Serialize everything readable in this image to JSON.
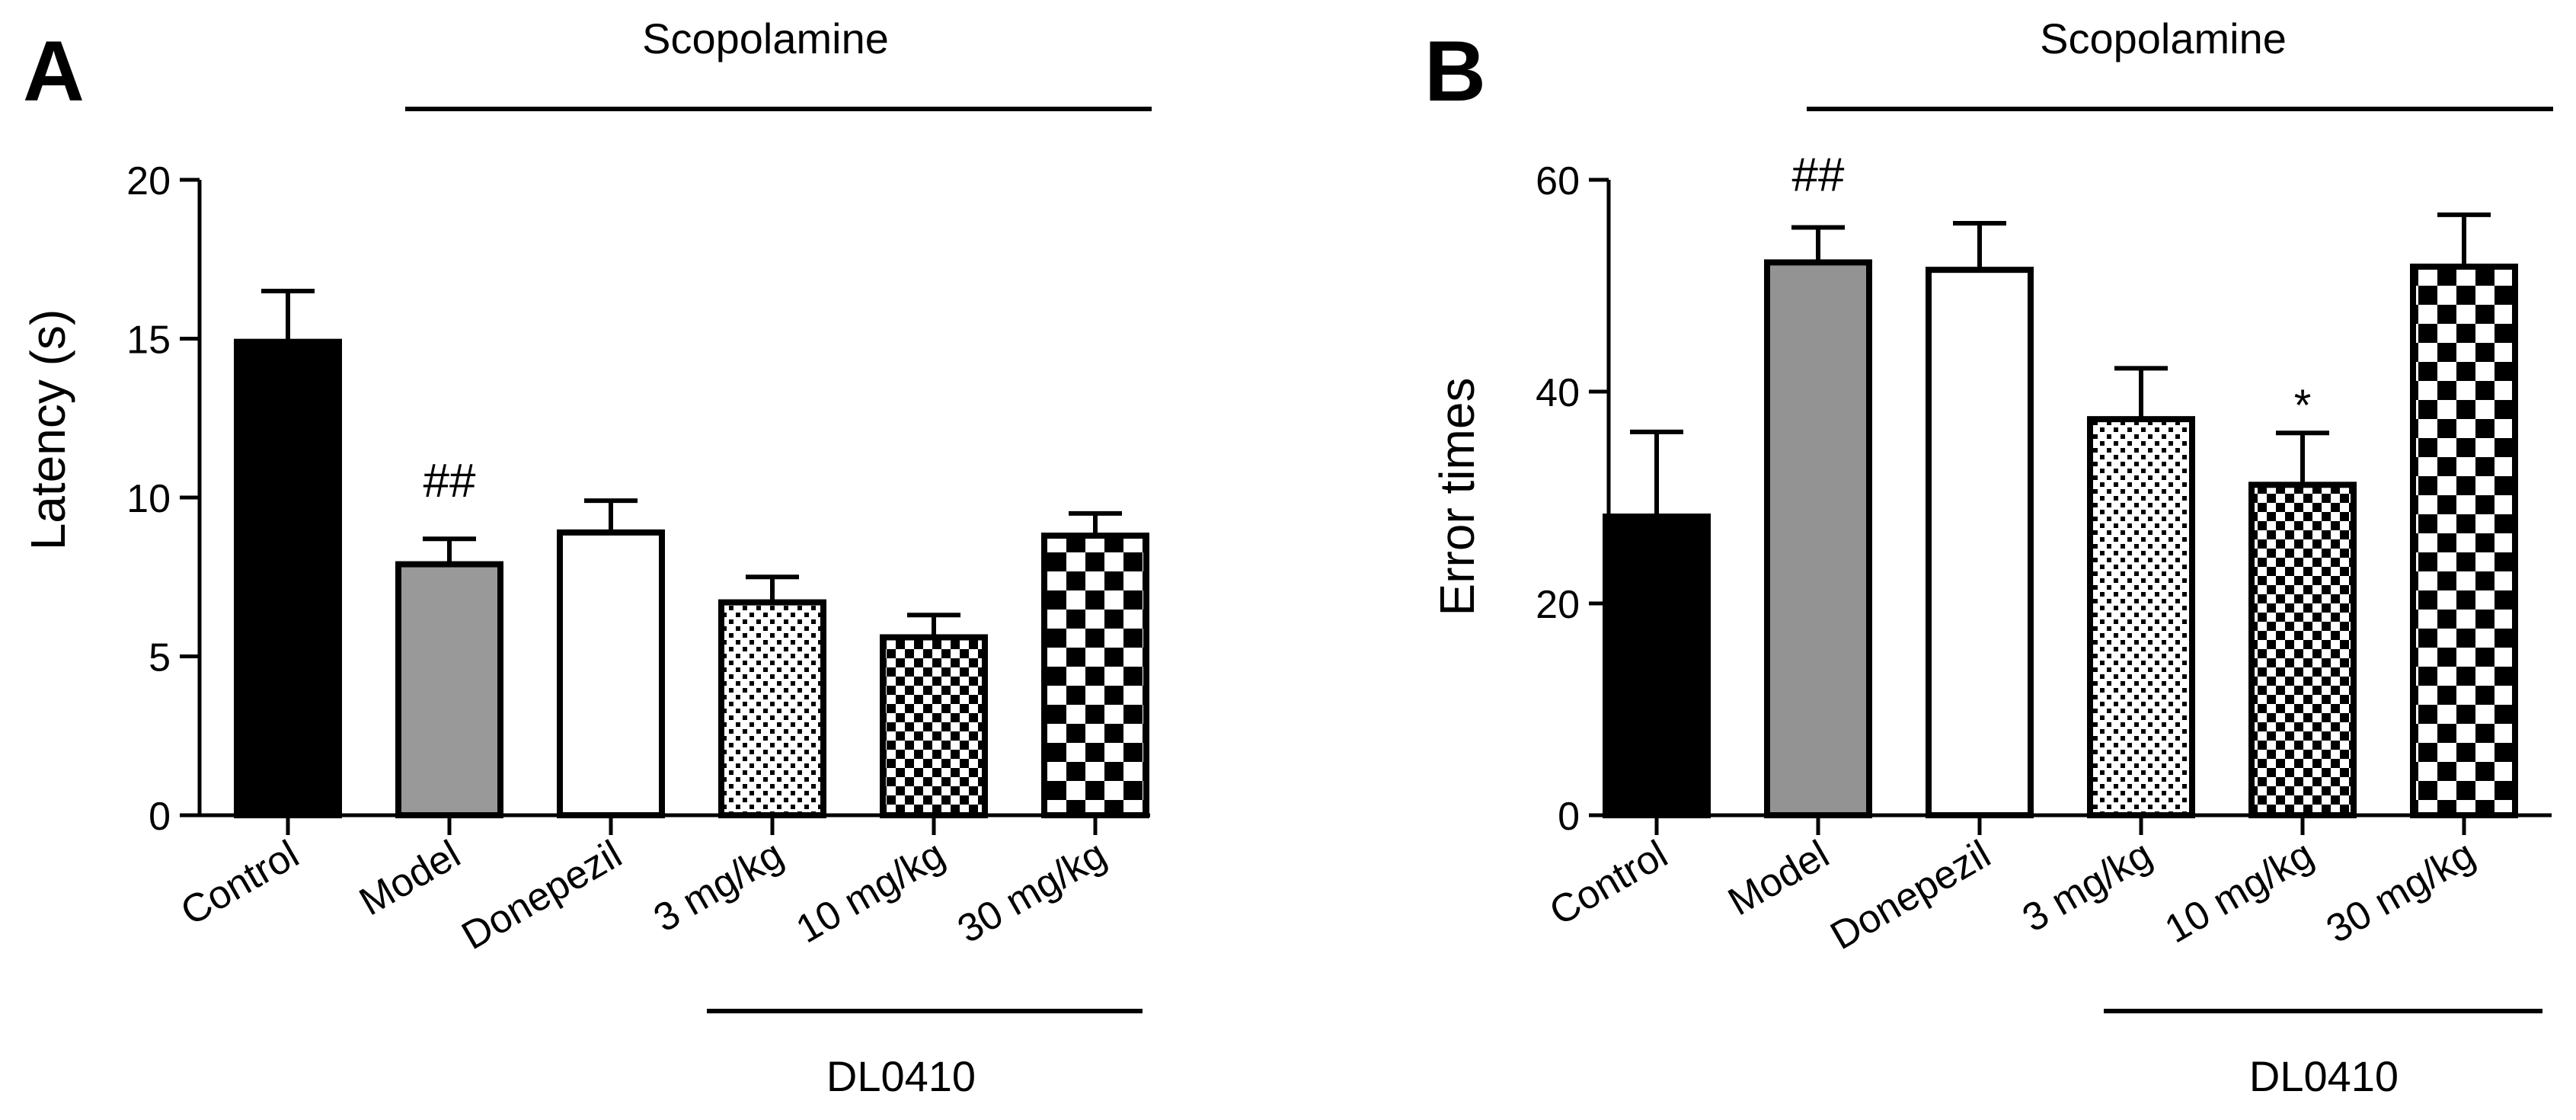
{
  "chart_data": [
    {
      "type": "bar",
      "panel_label": "A",
      "treatment_label": "Scopolamine",
      "group_label": "DL0410",
      "ylabel": "Latency (s)",
      "xlabel": "",
      "ylim": [
        0,
        20
      ],
      "yticks": [
        0,
        5,
        10,
        15,
        20
      ],
      "categories": [
        "Control",
        "Model",
        "Donepezil",
        "3 mg/kg",
        "10 mg/kg",
        "30 mg/kg"
      ],
      "values": [
        14.9,
        7.9,
        8.9,
        6.7,
        5.6,
        8.8
      ],
      "errors": [
        1.6,
        0.8,
        1.0,
        0.8,
        0.7,
        0.7
      ],
      "annotations": [
        "",
        "##",
        "",
        "",
        "",
        ""
      ],
      "fills": [
        "black",
        "gray",
        "white",
        "dots",
        "fine-check",
        "checker"
      ],
      "bar_colors": {
        "black": "#000000",
        "gray": "#999999",
        "white": "#ffffff"
      }
    },
    {
      "type": "bar",
      "panel_label": "B",
      "treatment_label": "Scopolamine",
      "group_label": "DL0410",
      "ylabel": "Error times",
      "xlabel": "",
      "ylim": [
        0,
        60
      ],
      "yticks": [
        0,
        20,
        40,
        60
      ],
      "categories": [
        "Control",
        "Model",
        "Donepezil",
        "3 mg/kg",
        "10 mg/kg",
        "30 mg/kg"
      ],
      "values": [
        28.2,
        52.2,
        51.5,
        37.4,
        31.2,
        51.8
      ],
      "errors": [
        8.0,
        3.3,
        4.4,
        4.8,
        4.9,
        4.9
      ],
      "annotations": [
        "",
        "##",
        "",
        "",
        "*",
        ""
      ],
      "fills": [
        "black",
        "gray",
        "white",
        "dots",
        "fine-check",
        "checker"
      ],
      "bar_colors": {
        "black": "#000000",
        "gray": "#939393",
        "white": "#ffffff"
      }
    }
  ]
}
